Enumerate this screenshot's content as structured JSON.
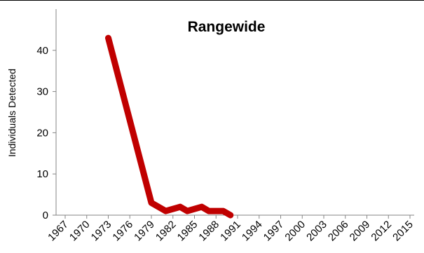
{
  "chart_data": {
    "type": "line",
    "title": "Rangewide",
    "xlabel": "",
    "ylabel": "Individuals Detected",
    "x_tick_labels": [
      "1967",
      "1970",
      "1973",
      "1976",
      "1979",
      "1982",
      "1985",
      "1988",
      "1991",
      "1994",
      "1997",
      "2000",
      "2003",
      "2006",
      "2009",
      "2012",
      "2015"
    ],
    "y_tick_labels": [
      "0",
      "10",
      "20",
      "30",
      "40"
    ],
    "xlim": [
      1967,
      2015
    ],
    "ylim": [
      0,
      50
    ],
    "grid": false,
    "legend": "none",
    "series": [
      {
        "color": "#c00000",
        "x": [
          1973,
          1979,
          1981,
          1983,
          1984,
          1986,
          1987,
          1989,
          1990
        ],
        "y": [
          43,
          3,
          1,
          2,
          1,
          2,
          1,
          1,
          0
        ]
      }
    ]
  }
}
